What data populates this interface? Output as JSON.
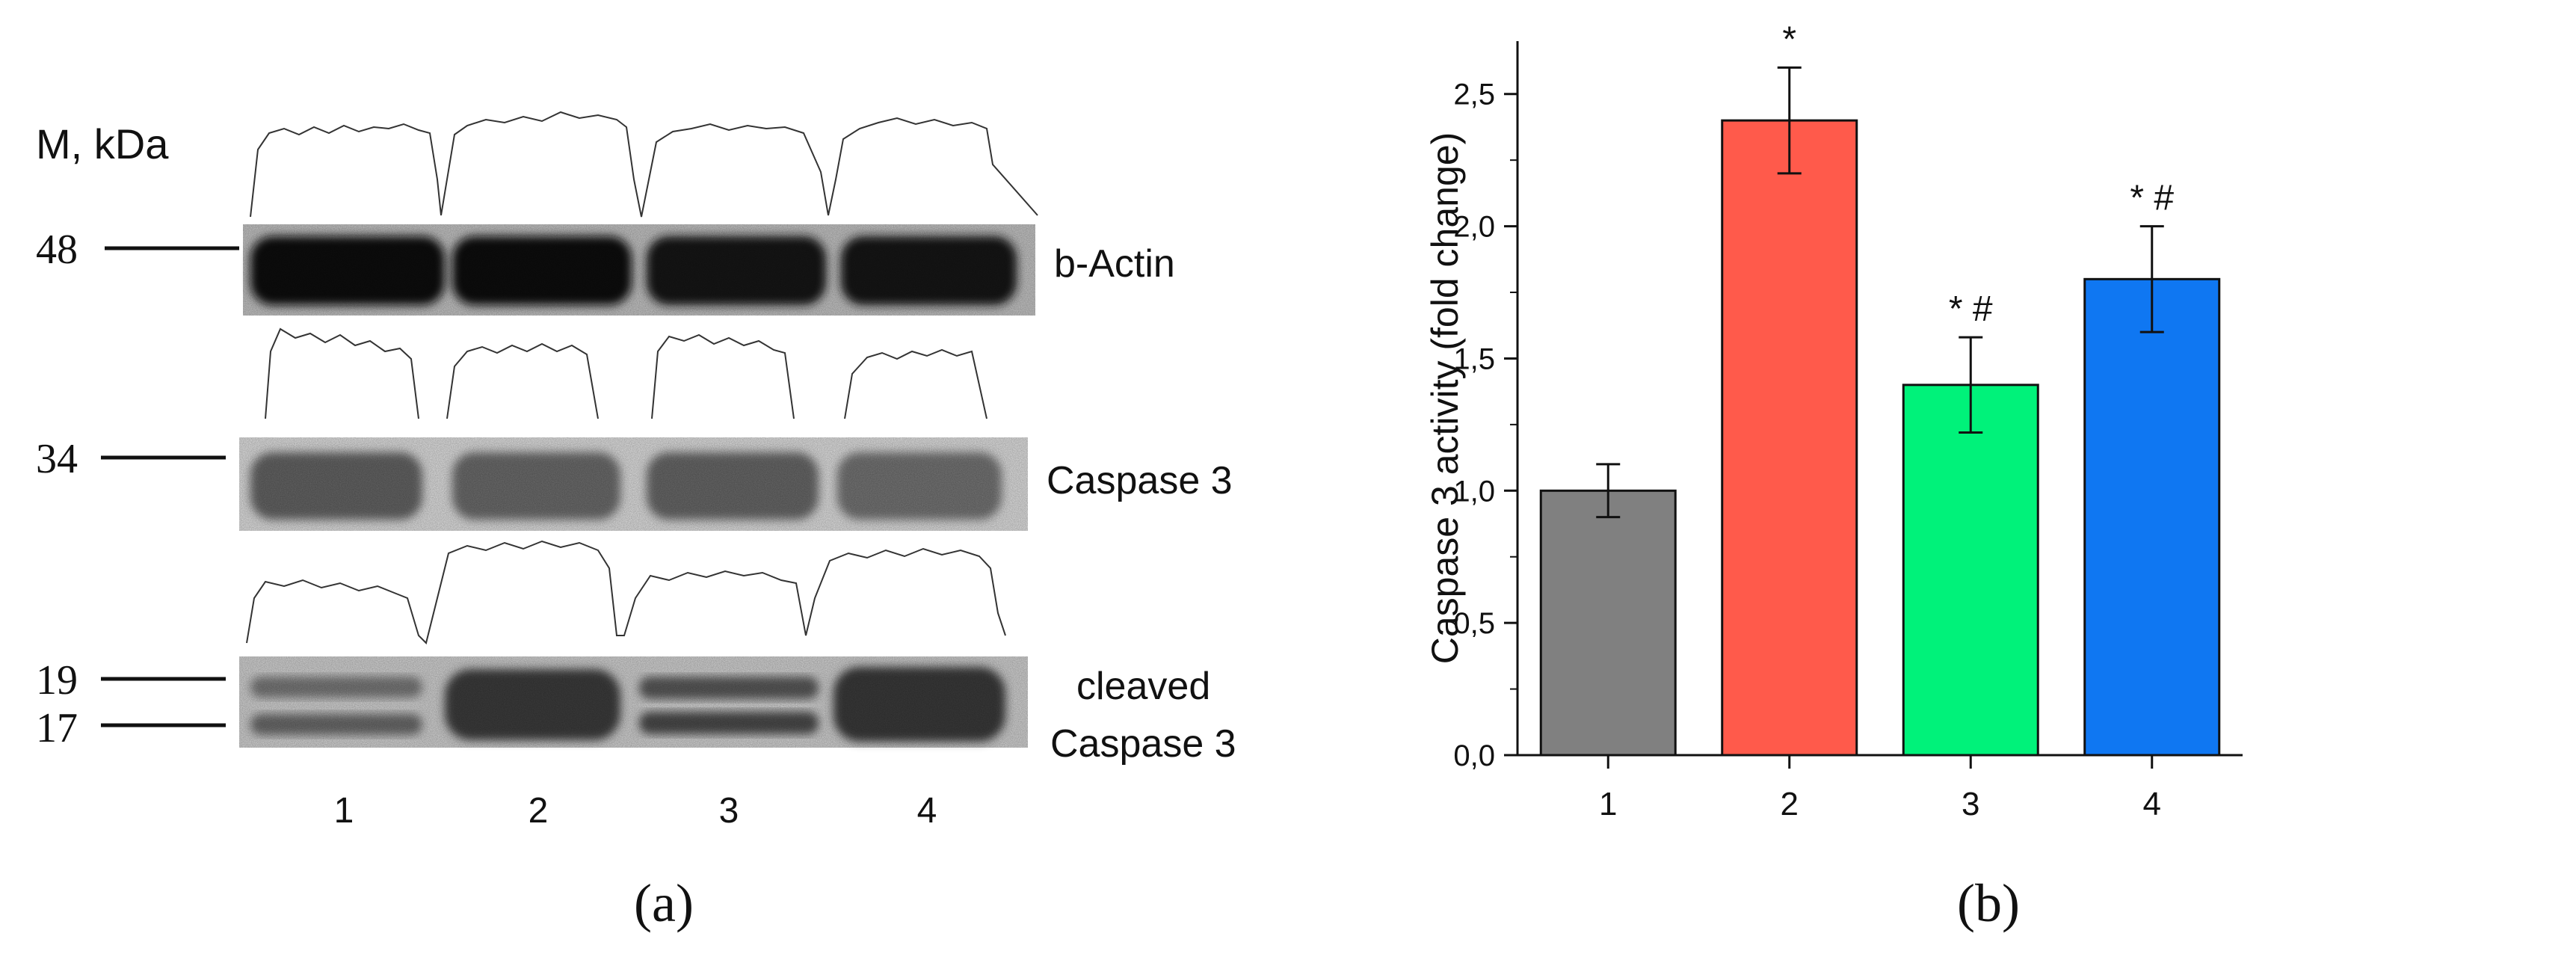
{
  "panel_a": {
    "caption": "(a)",
    "marker_header": "M, kDa",
    "markers": [
      "48",
      "34",
      "19",
      "17"
    ],
    "lane_labels": [
      "1",
      "2",
      "3",
      "4"
    ],
    "bands": [
      {
        "label": "b-Actin"
      },
      {
        "label": "Caspase 3"
      },
      {
        "label_line1": "cleaved",
        "label_line2": "Caspase 3"
      }
    ]
  },
  "panel_b": {
    "caption": "(b)"
  },
  "chart_data": {
    "type": "bar",
    "categories": [
      "1",
      "2",
      "3",
      "4"
    ],
    "values": [
      1.0,
      2.4,
      1.4,
      1.8
    ],
    "errors": [
      0.1,
      0.2,
      0.18,
      0.2
    ],
    "annotations": [
      "",
      "*",
      "* #",
      "* #"
    ],
    "colors": [
      "#808080",
      "#ff5a4b",
      "#00f27a",
      "#0f77f2"
    ],
    "title": "",
    "xlabel": "",
    "ylabel": "Caspase 3 activity (fold change)",
    "ylim": [
      0,
      2.7
    ],
    "yticks": [
      "0,0",
      "0,5",
      "1,0",
      "1,5",
      "2,0",
      "2,5"
    ],
    "ytick_values": [
      0,
      0.5,
      1.0,
      1.5,
      2.0,
      2.5
    ],
    "grid": false,
    "legend": "none"
  }
}
